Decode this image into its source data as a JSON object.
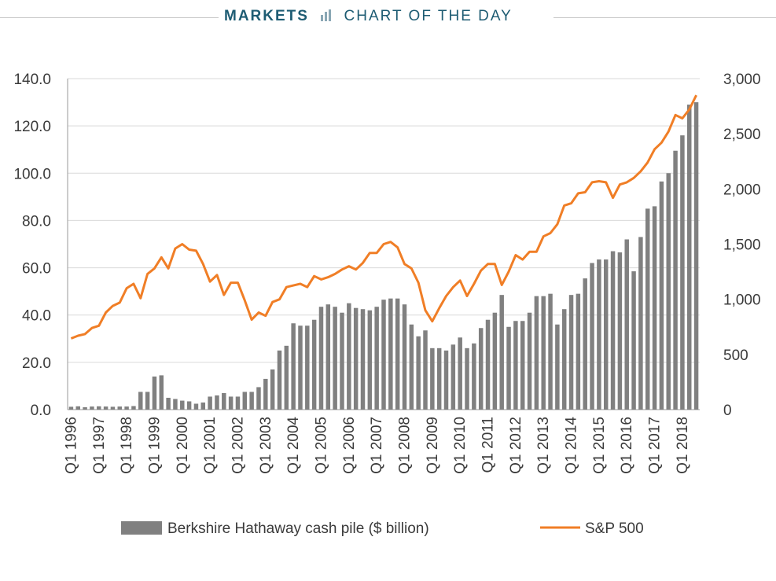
{
  "header": {
    "brand": "MARKETS",
    "icon": "bar-chart-icon",
    "label": "CHART OF THE DAY",
    "color": "#1e5c73"
  },
  "chart_data": {
    "type": "bar+line",
    "title": "",
    "left_axis": {
      "ticks": [
        "0.0",
        "20.0",
        "40.0",
        "60.0",
        "80.0",
        "100.0",
        "120.0",
        "140.0"
      ],
      "ylim": [
        0,
        140
      ]
    },
    "right_axis": {
      "ticks": [
        "0",
        "500",
        "1,000",
        "1,500",
        "2,000",
        "2,500",
        "3,000"
      ],
      "ylim": [
        0,
        3000
      ]
    },
    "x_tick_labels": [
      "Q1 1996",
      "Q1 1997",
      "Q1 1998",
      "Q1 1999",
      "Q1 2000",
      "Q1 2001",
      "Q1 2002",
      "Q1 2003",
      "Q1 2004",
      "Q1 2005",
      "Q1 2006",
      "Q1 2007",
      "Q1 2008",
      "Q1 2009",
      "Q1 2010",
      "Q1 2011",
      "Q1 2012",
      "Q1 2013",
      "Q1 2014",
      "Q1 2015",
      "Q1 2016",
      "Q1 2017",
      "Q1 2018"
    ],
    "quarters_start": "Q1 1996",
    "grid": true,
    "legend_position": "bottom",
    "series": [
      {
        "name": "Berkshire Hathaway cash pile ($ billion)",
        "type": "bar",
        "axis": "left",
        "color": "#808080",
        "values": [
          1.2,
          1.4,
          1.0,
          1.3,
          1.4,
          1.3,
          1.2,
          1.3,
          1.3,
          1.5,
          7.5,
          7.5,
          14.0,
          14.5,
          5.0,
          4.5,
          3.8,
          3.5,
          2.5,
          3.0,
          5.5,
          6.0,
          7.0,
          5.5,
          5.5,
          7.5,
          7.5,
          9.5,
          13.0,
          17.0,
          25.0,
          27.0,
          36.5,
          35.5,
          35.5,
          38.0,
          43.5,
          44.5,
          43.5,
          41.0,
          45.0,
          43.0,
          42.5,
          42.0,
          43.5,
          46.5,
          47.0,
          47.0,
          44.5,
          36.0,
          31.0,
          33.5,
          26.0,
          26.0,
          25.0,
          27.5,
          30.5,
          26.0,
          28.0,
          34.5,
          38.0,
          41.0,
          48.5,
          35.0,
          37.5,
          37.5,
          41.0,
          48.0,
          48.0,
          49.0,
          36.0,
          42.5,
          48.5,
          49.0,
          55.5,
          62.0,
          63.5,
          63.5,
          67.0,
          66.5,
          72.0,
          58.5,
          73.0,
          85.0,
          86.0,
          96.5,
          100.0,
          109.5,
          116.0,
          129.0,
          130.0
        ]
      },
      {
        "name": "S&P 500",
        "type": "line",
        "axis": "right",
        "color": "#f07e26",
        "values": [
          645,
          670,
          685,
          740,
          760,
          880,
          940,
          970,
          1100,
          1140,
          1010,
          1230,
          1280,
          1380,
          1280,
          1460,
          1500,
          1450,
          1440,
          1320,
          1160,
          1220,
          1040,
          1150,
          1150,
          990,
          815,
          880,
          850,
          975,
          1000,
          1110,
          1125,
          1140,
          1110,
          1210,
          1180,
          1200,
          1230,
          1270,
          1300,
          1270,
          1330,
          1420,
          1420,
          1500,
          1520,
          1470,
          1320,
          1280,
          1150,
          900,
          800,
          920,
          1030,
          1110,
          1170,
          1030,
          1140,
          1260,
          1320,
          1320,
          1130,
          1250,
          1400,
          1360,
          1430,
          1430,
          1570,
          1600,
          1680,
          1850,
          1870,
          1960,
          1970,
          2060,
          2070,
          2060,
          1920,
          2040,
          2060,
          2100,
          2160,
          2240,
          2360,
          2420,
          2520,
          2670,
          2640,
          2720,
          2850
        ]
      }
    ]
  }
}
